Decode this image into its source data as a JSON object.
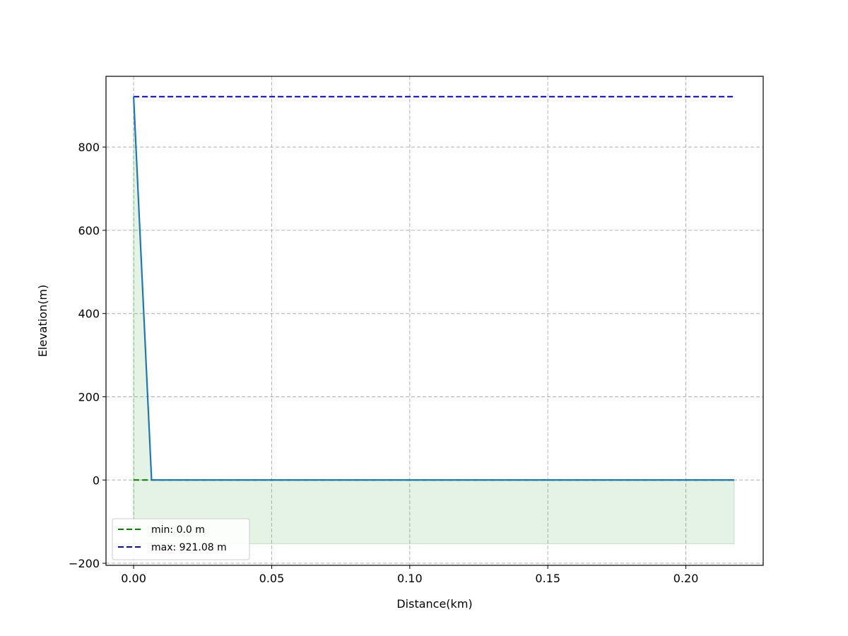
{
  "chart_data": {
    "type": "line",
    "title": "",
    "xlabel": "Distance(km)",
    "ylabel": "Elevation(m)",
    "xlim": [
      -0.01,
      0.228
    ],
    "ylim": [
      -205,
      970
    ],
    "xticks": [
      0.0,
      0.05,
      0.1,
      0.15,
      0.2
    ],
    "xtick_labels": [
      "0.00",
      "0.05",
      "0.10",
      "0.15",
      "0.20"
    ],
    "yticks": [
      -200,
      0,
      200,
      400,
      600,
      800
    ],
    "ytick_labels": [
      "−200",
      "0",
      "200",
      "400",
      "600",
      "800"
    ],
    "grid": true,
    "legend_position": "lower-left",
    "series": [
      {
        "x": [
          0.0,
          0.0065,
          0.2175
        ],
        "y": [
          921.08,
          0.0,
          0.0
        ],
        "color": "#1f77b4",
        "style": "solid"
      },
      {
        "name": "min: 0.0 m",
        "x": [
          0.0,
          0.2175
        ],
        "y": [
          0.0,
          0.0
        ],
        "color": "#008000",
        "style": "dashed"
      },
      {
        "name": "max: 921.08 m",
        "x": [
          0.0,
          0.2175
        ],
        "y": [
          921.08,
          921.08
        ],
        "color": "#0000cc",
        "style": "dashed"
      }
    ],
    "fill": {
      "x": [
        0.0,
        0.0065,
        0.2175
      ],
      "y_top": [
        921.08,
        0.0,
        0.0
      ],
      "y_bottom": -153,
      "color": "#2ca02c",
      "opacity": 0.13
    }
  }
}
